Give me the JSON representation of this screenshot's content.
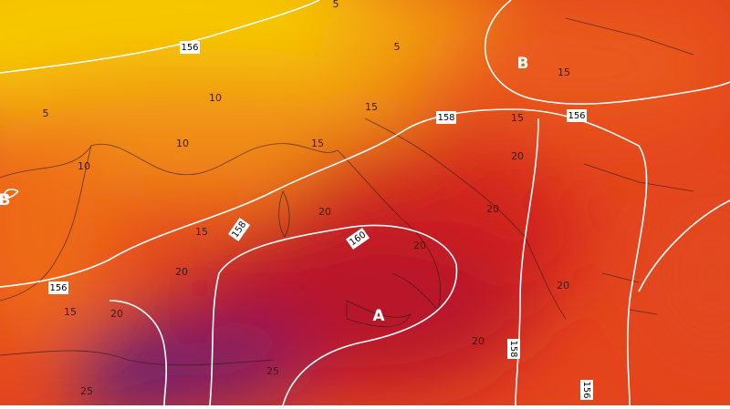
{
  "map": {
    "isohypse_labels": [
      "156",
      "156",
      "156",
      "158",
      "158",
      "158",
      "160",
      "156"
    ],
    "isotherm_labels": [
      "5",
      "5",
      "5",
      "10",
      "10",
      "10",
      "15",
      "15",
      "15",
      "15",
      "15",
      "15",
      "20",
      "20",
      "20",
      "20",
      "20",
      "20",
      "20",
      "20",
      "25",
      "25"
    ],
    "pressure_centers": [
      "B",
      "B",
      "A"
    ]
  }
}
